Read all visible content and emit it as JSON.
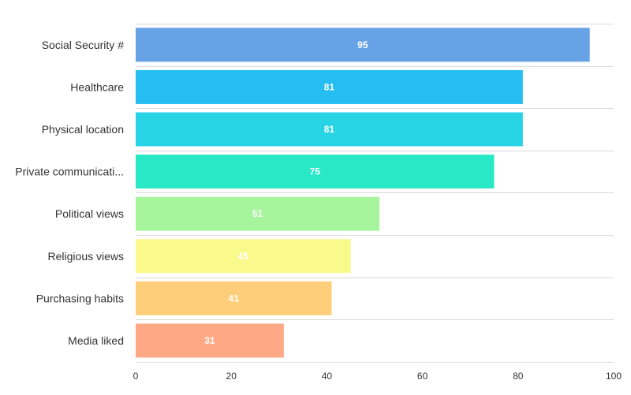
{
  "chart_data": {
    "type": "bar",
    "orientation": "horizontal",
    "title": "",
    "xlabel": "",
    "ylabel": "",
    "categories": [
      "Social Security #",
      "Healthcare",
      "Physical location",
      "Private communicati...",
      "Political views",
      "Religious views",
      "Purchasing habits",
      "Media liked"
    ],
    "values": [
      95,
      81,
      81,
      75,
      51,
      45,
      41,
      31
    ],
    "colors": [
      "#66a2e5",
      "#26bdf2",
      "#28d3e6",
      "#28e8c5",
      "#a6f59d",
      "#fafa8c",
      "#fece7a",
      "#fea886"
    ],
    "xlim": [
      0,
      100
    ],
    "x_ticks": [
      "0",
      "20",
      "40",
      "60",
      "80",
      "100"
    ],
    "grid": true,
    "legend": "none",
    "data_labels": true
  }
}
